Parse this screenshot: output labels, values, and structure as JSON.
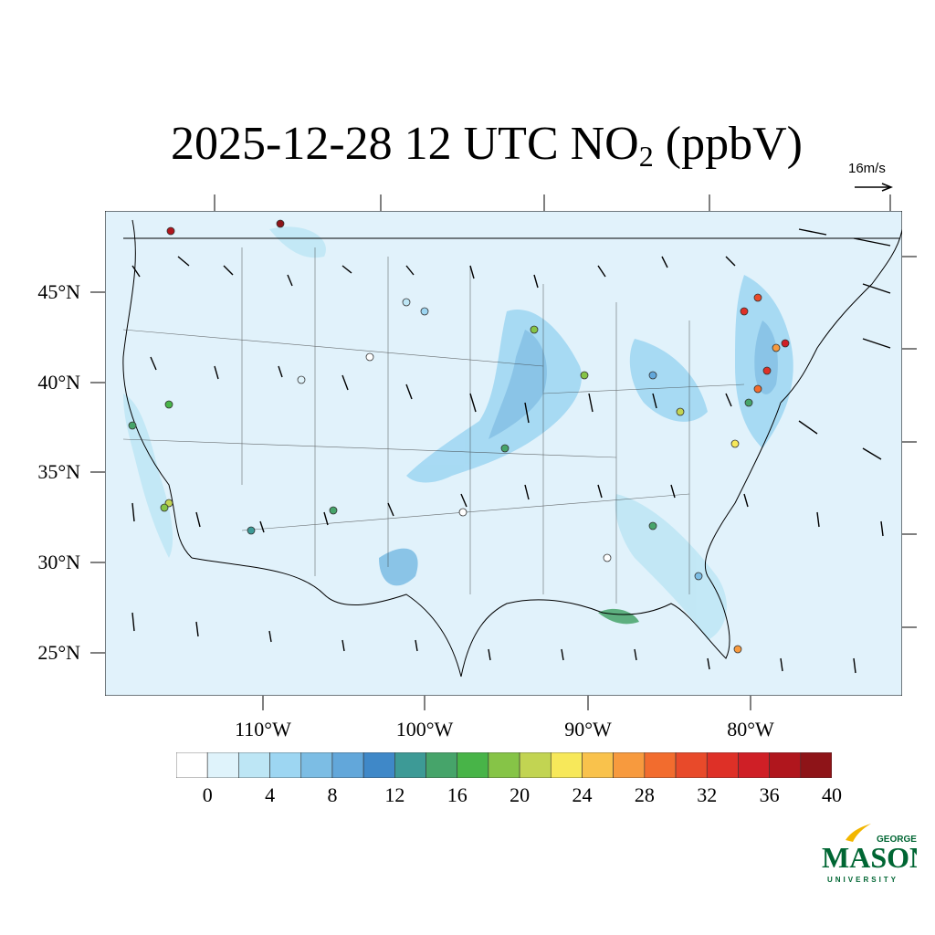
{
  "title": {
    "prefix": "2025-12-28 12 UTC NO",
    "sub": "2",
    "suffix": " (ppbV)"
  },
  "wind_reference": {
    "label": "16m/s"
  },
  "lat_ticks": [
    "45°N",
    "40°N",
    "35°N",
    "30°N",
    "25°N"
  ],
  "lon_ticks": [
    "110°W",
    "100°W",
    "90°W",
    "80°W"
  ],
  "colorbar": {
    "labels": [
      "0",
      "4",
      "8",
      "12",
      "16",
      "20",
      "24",
      "28",
      "32",
      "36",
      "40"
    ],
    "colors": [
      "#ffffff",
      "#dff3fb",
      "#bde6f5",
      "#9dd6f2",
      "#7cbde4",
      "#62a7da",
      "#3f88c8",
      "#3d9a96",
      "#46a46a",
      "#48b448",
      "#86c447",
      "#c2d452",
      "#f7e85a",
      "#f9c24c",
      "#f79a3e",
      "#f26c2e",
      "#e84a2a",
      "#de3027",
      "#cf1f26",
      "#b0161d",
      "#8e1418"
    ]
  },
  "map": {
    "ocean_color": "#e1f2fb",
    "land_color": "#d9eff9"
  },
  "logo": {
    "top": "GEORGE",
    "main": "MASON",
    "bottom": "UNIVERSITY",
    "color": "#006633",
    "accent": "#f2b600"
  }
}
